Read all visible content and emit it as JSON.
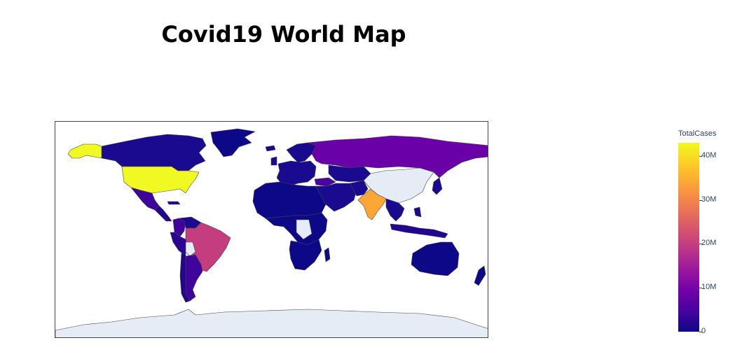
{
  "title": "Covid19 World Map",
  "colorbar": {
    "title": "TotalCases",
    "ticks": [
      "0",
      "10M",
      "20M",
      "30M",
      "40M"
    ],
    "colorscale": [
      "#0d0887",
      "#46039f",
      "#7201a8",
      "#9c179e",
      "#bd3786",
      "#d8576b",
      "#ed7953",
      "#fb9f3a",
      "#fdca26",
      "#f0f921"
    ]
  },
  "map": {
    "projection": "equirectangular",
    "no_data_color": "#e5ecf6",
    "border_color": "#444444",
    "regions": [
      {
        "name": "USA",
        "color": "#f0f921"
      },
      {
        "name": "Alaska",
        "color": "#f0f921"
      },
      {
        "name": "Canada",
        "color": "#1a0a8f"
      },
      {
        "name": "Greenland",
        "color": "#0d0887"
      },
      {
        "name": "Mexico",
        "color": "#3e049c"
      },
      {
        "name": "Central America",
        "color": "#220690"
      },
      {
        "name": "Brazil",
        "color": "#c43e7f"
      },
      {
        "name": "Colombia",
        "color": "#3e049c"
      },
      {
        "name": "Venezuela",
        "color": "#1a0a8f"
      },
      {
        "name": "Peru",
        "color": "#2a0593"
      },
      {
        "name": "Bolivia",
        "color": "#e5ecf6"
      },
      {
        "name": "Argentina",
        "color": "#3e049c"
      },
      {
        "name": "Chile",
        "color": "#220690"
      },
      {
        "name": "Europe",
        "color": "#1a0a8f"
      },
      {
        "name": "Scandinavia",
        "color": "#1a0a8f"
      },
      {
        "name": "Russia",
        "color": "#6a00a8"
      },
      {
        "name": "Kazakhstan",
        "color": "#1a0a8f"
      },
      {
        "name": "China",
        "color": "#e5ecf6"
      },
      {
        "name": "India",
        "color": "#fca636"
      },
      {
        "name": "Pakistan",
        "color": "#1a0a8f"
      },
      {
        "name": "Middle East",
        "color": "#1a0a8f"
      },
      {
        "name": "Turkey",
        "color": "#4a02a0"
      },
      {
        "name": "North Africa",
        "color": "#0d0887"
      },
      {
        "name": "Central Africa",
        "color": "#0d0887"
      },
      {
        "name": "Southern Africa",
        "color": "#0d0887"
      },
      {
        "name": "Africa no data",
        "color": "#e5ecf6"
      },
      {
        "name": "Southeast Asia",
        "color": "#1a0a8f"
      },
      {
        "name": "Japan",
        "color": "#1a0a8f"
      },
      {
        "name": "Indonesia",
        "color": "#220690"
      },
      {
        "name": "Philippines",
        "color": "#220690"
      },
      {
        "name": "Australia",
        "color": "#0d0887"
      },
      {
        "name": "New Zealand",
        "color": "#0d0887"
      },
      {
        "name": "Antarctica",
        "color": "#e5ecf6"
      }
    ]
  }
}
